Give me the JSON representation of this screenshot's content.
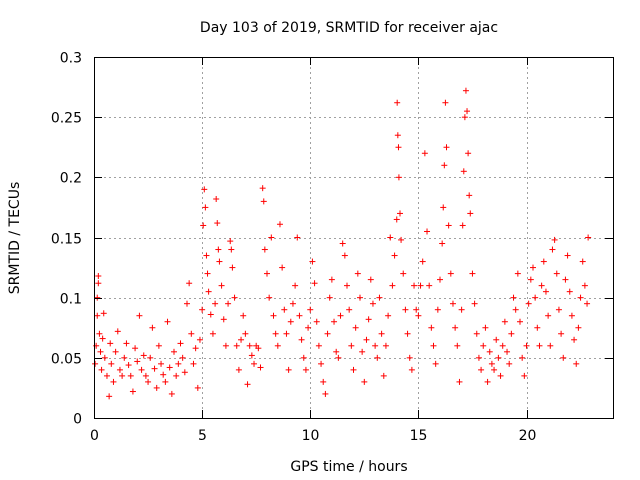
{
  "chart_data": {
    "type": "scatter",
    "title": "Day 103 of 2019, SRMTID for receiver ajac",
    "xlabel": "GPS time / hours",
    "ylabel": "SRMTID / TECUs",
    "xlim": [
      0,
      24
    ],
    "ylim": [
      0,
      0.3
    ],
    "xticks": [
      0,
      5,
      10,
      15,
      20
    ],
    "xtick_labels": [
      "0",
      "5",
      "10",
      "15",
      "20"
    ],
    "yticks": [
      0,
      0.05,
      0.1,
      0.15,
      0.2,
      0.25,
      0.3
    ],
    "ytick_labels": [
      "0",
      "0.05",
      "0.1",
      "0.15",
      "0.2",
      "0.25",
      "0.3"
    ],
    "grid": true,
    "marker": "+",
    "color": "#ff0000",
    "series": [
      {
        "name": "SRMTID",
        "points": [
          [
            0.05,
            0.045
          ],
          [
            0.1,
            0.06
          ],
          [
            0.15,
            0.085
          ],
          [
            0.15,
            0.1
          ],
          [
            0.2,
            0.112
          ],
          [
            0.2,
            0.118
          ],
          [
            0.25,
            0.07
          ],
          [
            0.3,
            0.055
          ],
          [
            0.35,
            0.04
          ],
          [
            0.4,
            0.066
          ],
          [
            0.45,
            0.087
          ],
          [
            0.5,
            0.05
          ],
          [
            0.6,
            0.035
          ],
          [
            0.7,
            0.018
          ],
          [
            0.75,
            0.062
          ],
          [
            0.8,
            0.045
          ],
          [
            0.9,
            0.03
          ],
          [
            1.0,
            0.055
          ],
          [
            1.1,
            0.072
          ],
          [
            1.2,
            0.04
          ],
          [
            1.3,
            0.035
          ],
          [
            1.4,
            0.05
          ],
          [
            1.5,
            0.062
          ],
          [
            1.6,
            0.044
          ],
          [
            1.7,
            0.035
          ],
          [
            1.8,
            0.022
          ],
          [
            1.9,
            0.058
          ],
          [
            2.0,
            0.047
          ],
          [
            2.1,
            0.085
          ],
          [
            2.2,
            0.04
          ],
          [
            2.3,
            0.052
          ],
          [
            2.4,
            0.035
          ],
          [
            2.5,
            0.03
          ],
          [
            2.6,
            0.05
          ],
          [
            2.7,
            0.075
          ],
          [
            2.8,
            0.041
          ],
          [
            2.9,
            0.025
          ],
          [
            3.0,
            0.06
          ],
          [
            3.1,
            0.045
          ],
          [
            3.2,
            0.036
          ],
          [
            3.3,
            0.03
          ],
          [
            3.4,
            0.08
          ],
          [
            3.5,
            0.042
          ],
          [
            3.6,
            0.02
          ],
          [
            3.7,
            0.055
          ],
          [
            3.8,
            0.035
          ],
          [
            3.9,
            0.045
          ],
          [
            4.0,
            0.062
          ],
          [
            4.1,
            0.05
          ],
          [
            4.2,
            0.038
          ],
          [
            4.3,
            0.095
          ],
          [
            4.4,
            0.112
          ],
          [
            4.5,
            0.07
          ],
          [
            4.6,
            0.045
          ],
          [
            4.7,
            0.058
          ],
          [
            4.8,
            0.025
          ],
          [
            4.9,
            0.065
          ],
          [
            5.0,
            0.09
          ],
          [
            5.05,
            0.16
          ],
          [
            5.1,
            0.19
          ],
          [
            5.15,
            0.175
          ],
          [
            5.2,
            0.135
          ],
          [
            5.25,
            0.12
          ],
          [
            5.3,
            0.105
          ],
          [
            5.4,
            0.086
          ],
          [
            5.5,
            0.07
          ],
          [
            5.6,
            0.095
          ],
          [
            5.65,
            0.182
          ],
          [
            5.7,
            0.162
          ],
          [
            5.75,
            0.14
          ],
          [
            5.8,
            0.13
          ],
          [
            5.9,
            0.11
          ],
          [
            6.0,
            0.082
          ],
          [
            6.1,
            0.06
          ],
          [
            6.2,
            0.095
          ],
          [
            6.3,
            0.147
          ],
          [
            6.35,
            0.14
          ],
          [
            6.4,
            0.125
          ],
          [
            6.5,
            0.1
          ],
          [
            6.6,
            0.06
          ],
          [
            6.7,
            0.04
          ],
          [
            6.8,
            0.065
          ],
          [
            6.9,
            0.085
          ],
          [
            7.0,
            0.07
          ],
          [
            7.1,
            0.028
          ],
          [
            7.2,
            0.06
          ],
          [
            7.3,
            0.052
          ],
          [
            7.4,
            0.045
          ],
          [
            7.5,
            0.06
          ],
          [
            7.6,
            0.058
          ],
          [
            7.7,
            0.042
          ],
          [
            7.8,
            0.191
          ],
          [
            7.85,
            0.18
          ],
          [
            7.9,
            0.14
          ],
          [
            8.0,
            0.12
          ],
          [
            8.1,
            0.1
          ],
          [
            8.2,
            0.15
          ],
          [
            8.3,
            0.085
          ],
          [
            8.4,
            0.07
          ],
          [
            8.5,
            0.06
          ],
          [
            8.6,
            0.161
          ],
          [
            8.7,
            0.125
          ],
          [
            8.8,
            0.09
          ],
          [
            8.9,
            0.07
          ],
          [
            9.0,
            0.04
          ],
          [
            9.1,
            0.08
          ],
          [
            9.2,
            0.095
          ],
          [
            9.3,
            0.11
          ],
          [
            9.4,
            0.15
          ],
          [
            9.5,
            0.085
          ],
          [
            9.6,
            0.065
          ],
          [
            9.7,
            0.05
          ],
          [
            9.8,
            0.04
          ],
          [
            9.9,
            0.075
          ],
          [
            10.0,
            0.09
          ],
          [
            10.1,
            0.13
          ],
          [
            10.2,
            0.112
          ],
          [
            10.3,
            0.08
          ],
          [
            10.4,
            0.06
          ],
          [
            10.5,
            0.045
          ],
          [
            10.6,
            0.03
          ],
          [
            10.7,
            0.02
          ],
          [
            10.8,
            0.07
          ],
          [
            10.9,
            0.1
          ],
          [
            11.0,
            0.115
          ],
          [
            11.1,
            0.08
          ],
          [
            11.2,
            0.055
          ],
          [
            11.3,
            0.05
          ],
          [
            11.4,
            0.085
          ],
          [
            11.5,
            0.145
          ],
          [
            11.6,
            0.135
          ],
          [
            11.7,
            0.11
          ],
          [
            11.8,
            0.09
          ],
          [
            11.9,
            0.06
          ],
          [
            12.0,
            0.04
          ],
          [
            12.1,
            0.075
          ],
          [
            12.2,
            0.12
          ],
          [
            12.3,
            0.1
          ],
          [
            12.4,
            0.055
          ],
          [
            12.5,
            0.03
          ],
          [
            12.6,
            0.065
          ],
          [
            12.7,
            0.082
          ],
          [
            12.8,
            0.115
          ],
          [
            12.9,
            0.095
          ],
          [
            13.0,
            0.06
          ],
          [
            13.1,
            0.05
          ],
          [
            13.2,
            0.1
          ],
          [
            13.3,
            0.07
          ],
          [
            13.4,
            0.035
          ],
          [
            13.5,
            0.06
          ],
          [
            13.6,
            0.085
          ],
          [
            13.7,
            0.15
          ],
          [
            13.8,
            0.11
          ],
          [
            13.9,
            0.135
          ],
          [
            14.0,
            0.165
          ],
          [
            14.02,
            0.262
          ],
          [
            14.05,
            0.235
          ],
          [
            14.08,
            0.225
          ],
          [
            14.1,
            0.2
          ],
          [
            14.15,
            0.17
          ],
          [
            14.2,
            0.148
          ],
          [
            14.3,
            0.12
          ],
          [
            14.4,
            0.09
          ],
          [
            14.5,
            0.07
          ],
          [
            14.6,
            0.05
          ],
          [
            14.7,
            0.04
          ],
          [
            14.8,
            0.11
          ],
          [
            14.9,
            0.09
          ],
          [
            15.0,
            0.085
          ],
          [
            15.1,
            0.11
          ],
          [
            15.2,
            0.13
          ],
          [
            15.3,
            0.22
          ],
          [
            15.4,
            0.155
          ],
          [
            15.5,
            0.11
          ],
          [
            15.6,
            0.075
          ],
          [
            15.7,
            0.06
          ],
          [
            15.8,
            0.045
          ],
          [
            15.9,
            0.09
          ],
          [
            16.0,
            0.115
          ],
          [
            16.1,
            0.145
          ],
          [
            16.15,
            0.175
          ],
          [
            16.2,
            0.21
          ],
          [
            16.25,
            0.262
          ],
          [
            16.3,
            0.225
          ],
          [
            16.4,
            0.16
          ],
          [
            16.5,
            0.12
          ],
          [
            16.6,
            0.095
          ],
          [
            16.7,
            0.075
          ],
          [
            16.8,
            0.06
          ],
          [
            16.9,
            0.03
          ],
          [
            17.0,
            0.09
          ],
          [
            17.05,
            0.16
          ],
          [
            17.1,
            0.205
          ],
          [
            17.15,
            0.25
          ],
          [
            17.2,
            0.272
          ],
          [
            17.25,
            0.255
          ],
          [
            17.3,
            0.22
          ],
          [
            17.35,
            0.185
          ],
          [
            17.4,
            0.17
          ],
          [
            17.5,
            0.12
          ],
          [
            17.6,
            0.095
          ],
          [
            17.7,
            0.07
          ],
          [
            17.8,
            0.05
          ],
          [
            17.9,
            0.04
          ],
          [
            18.0,
            0.06
          ],
          [
            18.1,
            0.075
          ],
          [
            18.2,
            0.03
          ],
          [
            18.3,
            0.055
          ],
          [
            18.4,
            0.045
          ],
          [
            18.5,
            0.04
          ],
          [
            18.6,
            0.065
          ],
          [
            18.7,
            0.05
          ],
          [
            18.8,
            0.035
          ],
          [
            18.9,
            0.06
          ],
          [
            19.0,
            0.08
          ],
          [
            19.1,
            0.055
          ],
          [
            19.2,
            0.045
          ],
          [
            19.3,
            0.07
          ],
          [
            19.4,
            0.1
          ],
          [
            19.5,
            0.09
          ],
          [
            19.6,
            0.12
          ],
          [
            19.7,
            0.08
          ],
          [
            19.8,
            0.05
          ],
          [
            19.9,
            0.035
          ],
          [
            20.0,
            0.06
          ],
          [
            20.1,
            0.095
          ],
          [
            20.2,
            0.115
          ],
          [
            20.3,
            0.125
          ],
          [
            20.4,
            0.1
          ],
          [
            20.5,
            0.075
          ],
          [
            20.6,
            0.06
          ],
          [
            20.7,
            0.11
          ],
          [
            20.8,
            0.13
          ],
          [
            20.9,
            0.105
          ],
          [
            21.0,
            0.085
          ],
          [
            21.1,
            0.06
          ],
          [
            21.2,
            0.14
          ],
          [
            21.3,
            0.148
          ],
          [
            21.4,
            0.12
          ],
          [
            21.5,
            0.09
          ],
          [
            21.6,
            0.07
          ],
          [
            21.7,
            0.05
          ],
          [
            21.8,
            0.115
          ],
          [
            21.9,
            0.135
          ],
          [
            22.0,
            0.105
          ],
          [
            22.1,
            0.085
          ],
          [
            22.2,
            0.065
          ],
          [
            22.3,
            0.045
          ],
          [
            22.4,
            0.075
          ],
          [
            22.5,
            0.1
          ],
          [
            22.6,
            0.13
          ],
          [
            22.7,
            0.11
          ],
          [
            22.8,
            0.095
          ],
          [
            22.85,
            0.15
          ]
        ]
      }
    ]
  }
}
